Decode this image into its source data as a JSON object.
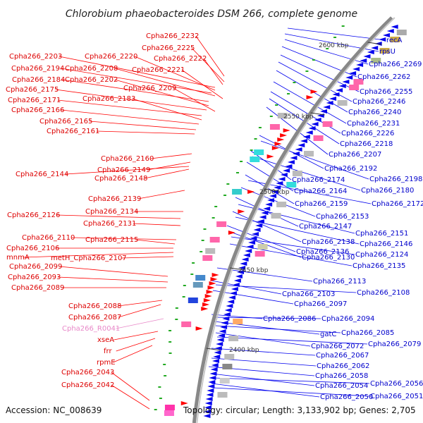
{
  "title": "Chlorobium phaeobacteroides DSM 266, complete genome",
  "accession": "Accession: NC_008639",
  "summary": "Topology: circular; Length: 3,133,902 bp; Genes: 2,705",
  "ticks": [
    "2600 kbp",
    "2550 kbp",
    "2500 kbp",
    "2450 kbp",
    "2400 kbp"
  ],
  "colors": {
    "forward": "#ff0000",
    "reverse": "#0000ee",
    "rna": "#ffaadd",
    "backbone": "#888888"
  },
  "left_labels": [
    "Cpha266_2232",
    "Cpha266_2225",
    "Cpha266_2222",
    "Cpha266_2203",
    "Cpha266_2220",
    "Cpha266_2194",
    "Cpha266_2208",
    "Cpha266_2221",
    "Cpha266_2184",
    "Cpha266_2202",
    "Cpha266_2175",
    "Cpha266_2209",
    "Cpha266_2171",
    "Cpha266_2183",
    "Cpha266_2166",
    "Cpha266_2165",
    "Cpha266_2161",
    "Cpha266_2160",
    "Cpha266_2149",
    "Cpha266_2144",
    "Cpha266_2148",
    "Cpha266_2139",
    "Cpha266_2134",
    "Cpha266_2126",
    "Cpha266_2131",
    "Cpha266_2110",
    "Cpha266_2115",
    "Cpha266_2106",
    "mnmA",
    "metH_Cpha266_2107",
    "Cpha266_2099",
    "Cpha266_2093",
    "Cpha266_2089",
    "Cpha266_2088",
    "Cpha266_2087",
    "Cpha266_R0041",
    "xseA",
    "frr",
    "rpmE",
    "Cpha266_2043",
    "Cpha266_2042"
  ],
  "right_labels": [
    "recA",
    "rpsU",
    "Cpha266_2269",
    "Cpha266_2262",
    "Cpha266_2255",
    "Cpha266_2246",
    "Cpha266_2240",
    "Cpha266_2231",
    "Cpha266_2226",
    "Cpha266_2218",
    "Cpha266_2207",
    "Cpha266_2192",
    "Cpha266_2198",
    "Cpha266_2174",
    "Cpha266_2180",
    "Cpha266_2164",
    "Cpha266_2159",
    "Cpha266_2172",
    "Cpha266_2153",
    "Cpha266_2147",
    "Cpha266_2151",
    "Cpha266_2138",
    "Cpha266_2146",
    "Cpha266_2136",
    "Cpha266_2130",
    "Cpha266_2124",
    "Cpha266_2135",
    "Cpha266_2113",
    "Cpha266_2103",
    "Cpha266_2108",
    "Cpha266_2097",
    "Cpha266_2086",
    "Cpha266_2094",
    "gatC",
    "Cpha266_2085",
    "Cpha266_2072",
    "Cpha266_2079",
    "Cpha266_2067",
    "Cpha266_2062",
    "Cpha266_2058",
    "Cpha266_2054",
    "Cpha266_2056",
    "Cpha266_2050",
    "Cpha266_2051"
  ]
}
